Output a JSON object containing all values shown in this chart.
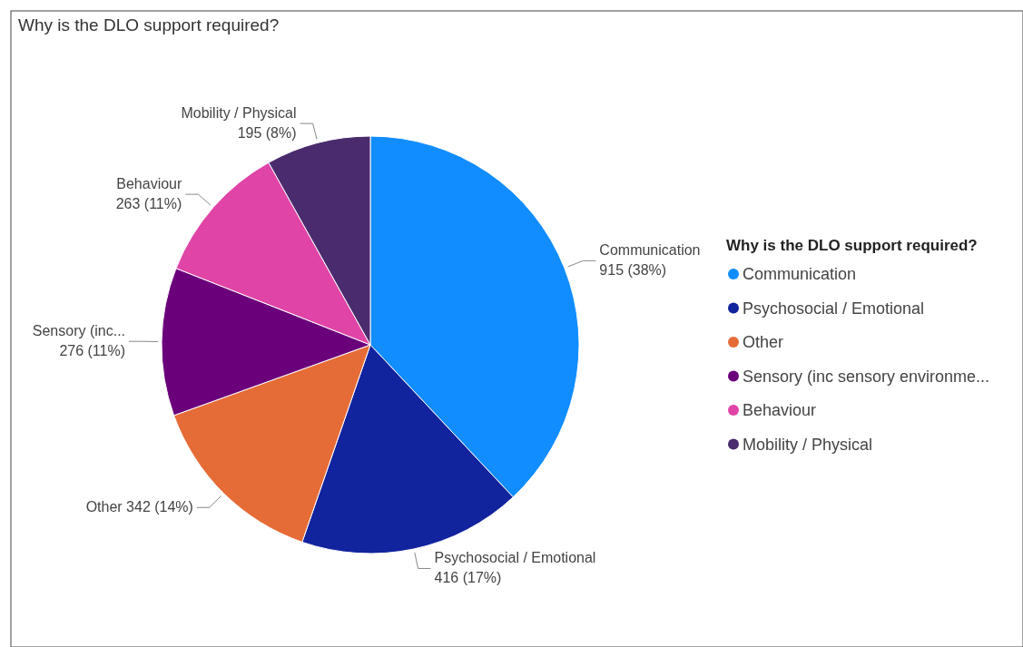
{
  "chart_data": {
    "type": "pie",
    "title": "Why is the DLO support required?",
    "legend_title": "Why is the DLO support required?",
    "legend": "right",
    "categories": [
      "Communication",
      "Psychosocial / Emotional",
      "Other",
      "Sensory (inc sensory environme...",
      "Behaviour",
      "Mobility / Physical"
    ],
    "values": [
      915,
      416,
      342,
      276,
      263,
      195
    ],
    "colors": [
      "#118dff",
      "#12239e",
      "#e66c37",
      "#6b007b",
      "#e044a7",
      "#4a2c6e"
    ],
    "value_labels": [
      "Communication\n915 (38%)",
      "Psychosocial / Emotional\n416 (17%)",
      "Other 342 (14%)",
      "Sensory (inc...\n276 (11%)",
      "Behaviour\n263 (11%)",
      "Mobility / Physical\n195 (8%)"
    ]
  }
}
